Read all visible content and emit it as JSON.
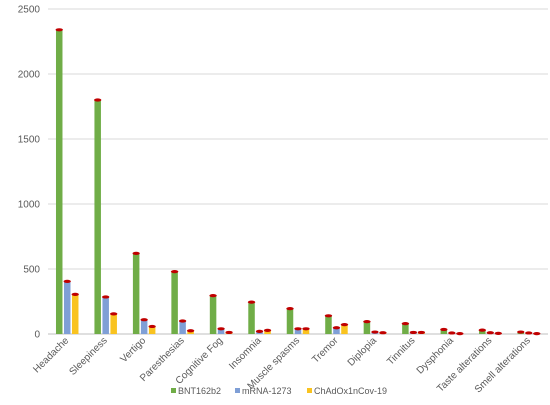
{
  "chart_data": {
    "type": "bar",
    "categories": [
      "Headache",
      "Sleepiness",
      "Vertigo",
      "Paresthesias",
      "Cognitive Fog",
      "Insomnia",
      "Muscle spasms",
      "Tremor",
      "Diplopia",
      "Tinnitus",
      "Dysphonia",
      "Taste alterations",
      "Smell alterations"
    ],
    "series": [
      {
        "name": "BNT162b2",
        "color": "#70ad47",
        "values": [
          2340,
          1800,
          620,
          480,
          295,
          245,
          195,
          140,
          95,
          80,
          35,
          30,
          15
        ]
      },
      {
        "name": "mRNA-1273",
        "color": "#7f9fd6",
        "values": [
          405,
          285,
          110,
          100,
          40,
          20,
          40,
          48,
          15,
          12,
          8,
          10,
          8
        ]
      },
      {
        "name": "ChAdOx1nCov-19",
        "color": "#f9c320",
        "values": [
          305,
          155,
          58,
          25,
          12,
          28,
          40,
          72,
          10,
          12,
          3,
          5,
          3
        ]
      }
    ],
    "cap_color": "#c00000",
    "ylim": [
      0,
      2500
    ],
    "yticks": [
      0,
      500,
      1000,
      1500,
      2000,
      2500
    ],
    "grid": true,
    "legend": "bottom"
  }
}
